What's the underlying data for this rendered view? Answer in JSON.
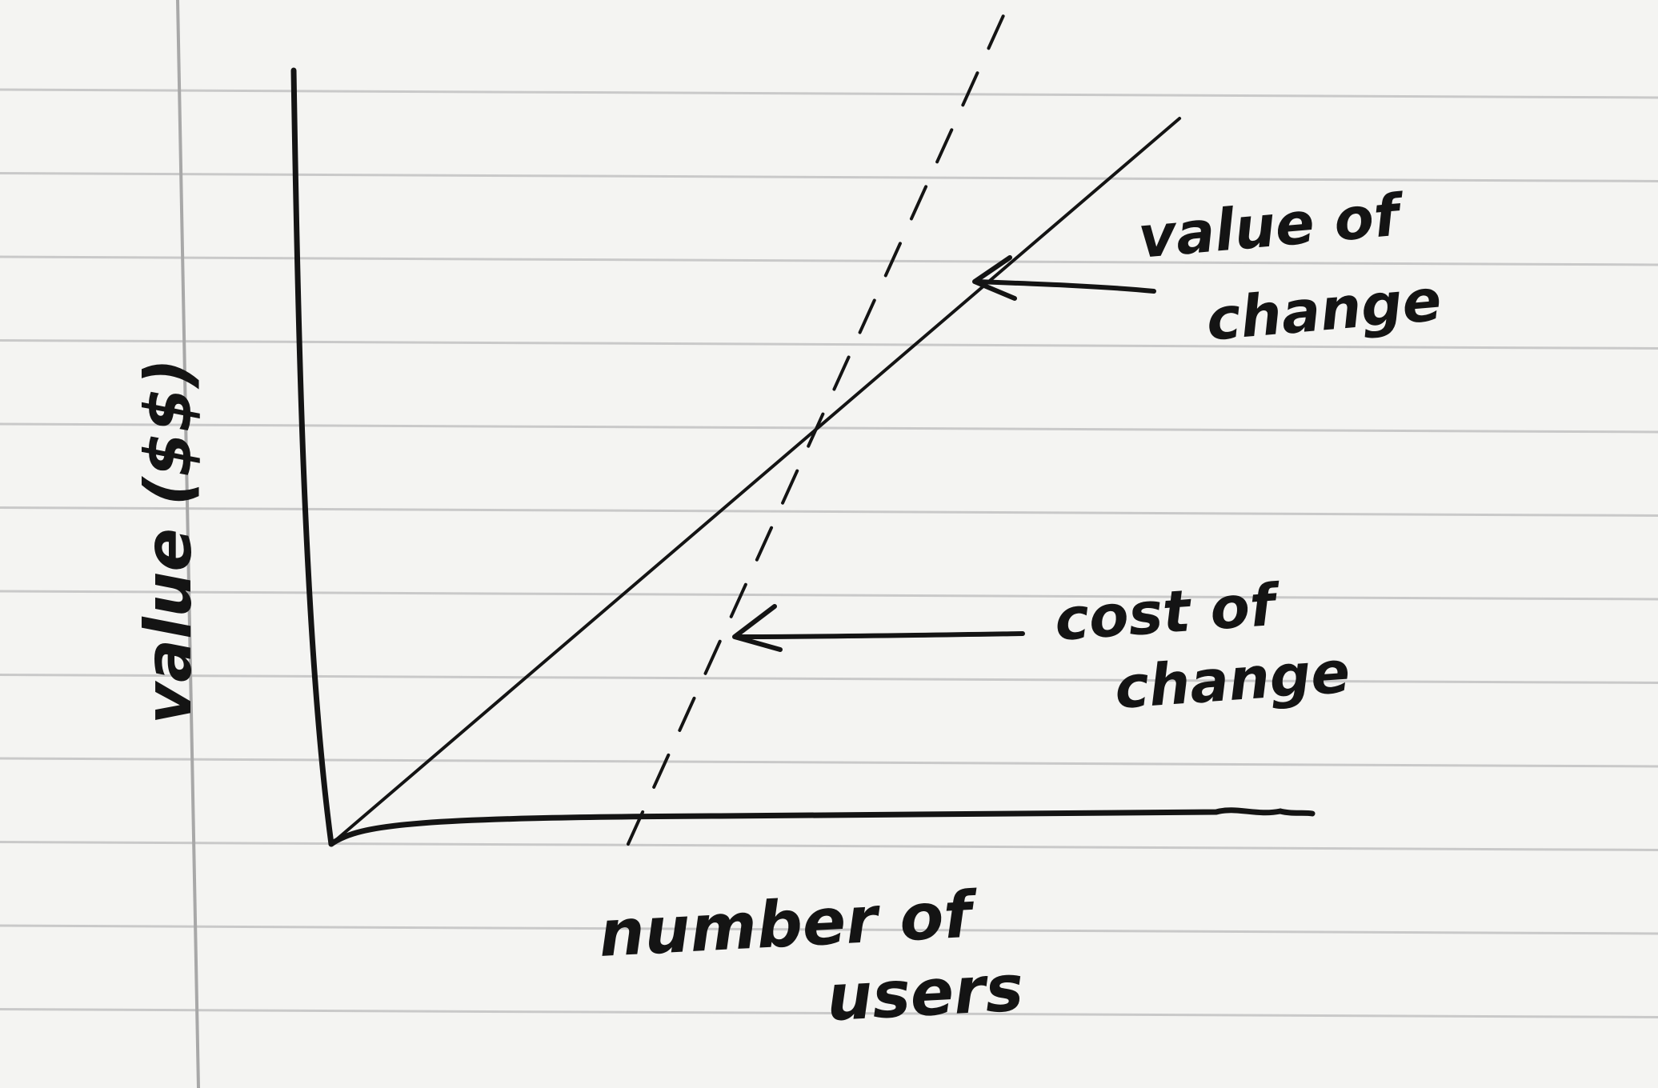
{
  "chart_data": {
    "type": "line",
    "title": "",
    "xlabel": "number of users",
    "ylabel": "value ($$)",
    "xlim": [
      0,
      10
    ],
    "ylim": [
      0,
      10
    ],
    "grid": false,
    "series": [
      {
        "style": "solid",
        "x": [
          0,
          10
        ],
        "y": [
          0,
          9.3
        ]
      },
      {
        "style": "dashed",
        "x": [
          3.5,
          8.0
        ],
        "y": [
          0,
          10.8
        ]
      }
    ],
    "annotations": [
      {
        "text_lines": [
          "value of",
          "change"
        ],
        "target": "solid-line",
        "arrow": true
      },
      {
        "text_lines": [
          "cost of",
          "change"
        ],
        "target": "dashed-line",
        "arrow": true
      }
    ]
  },
  "colors": {
    "ink": "#141414",
    "paper": "#f4f4f2",
    "ruled_line": "#c9c9c9",
    "margin_line": "#a8a8a8"
  }
}
